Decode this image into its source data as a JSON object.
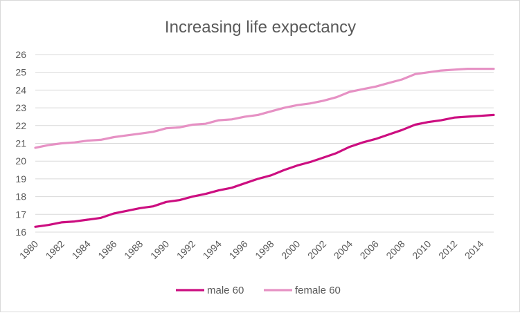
{
  "chart_data": {
    "type": "line",
    "title": "Increasing life expectancy",
    "xlabel": "",
    "ylabel": "",
    "x": [
      1980,
      1981,
      1982,
      1983,
      1984,
      1985,
      1986,
      1987,
      1988,
      1989,
      1990,
      1991,
      1992,
      1993,
      1994,
      1995,
      1996,
      1997,
      1998,
      1999,
      2000,
      2001,
      2002,
      2003,
      2004,
      2005,
      2006,
      2007,
      2008,
      2009,
      2010,
      2011,
      2012,
      2013,
      2014,
      2015
    ],
    "xticks": [
      "1980",
      "1982",
      "1984",
      "1986",
      "1988",
      "1990",
      "1992",
      "1994",
      "1996",
      "1998",
      "2000",
      "2002",
      "2004",
      "2006",
      "2008",
      "2010",
      "2012",
      "2014"
    ],
    "ylim": [
      16,
      26
    ],
    "yticks": [
      "16",
      "17",
      "18",
      "19",
      "20",
      "21",
      "22",
      "23",
      "24",
      "25",
      "26"
    ],
    "grid": true,
    "legend_position": "bottom",
    "series": [
      {
        "name": "male 60",
        "color": "#cc0e80",
        "values": [
          16.3,
          16.4,
          16.55,
          16.6,
          16.7,
          16.8,
          17.05,
          17.2,
          17.35,
          17.45,
          17.7,
          17.8,
          18.0,
          18.15,
          18.35,
          18.5,
          18.75,
          19.0,
          19.2,
          19.5,
          19.75,
          19.95,
          20.2,
          20.45,
          20.8,
          21.05,
          21.25,
          21.5,
          21.75,
          22.05,
          22.2,
          22.3,
          22.45,
          22.5,
          22.55,
          22.6
        ]
      },
      {
        "name": "female 60",
        "color": "#e691c4",
        "values": [
          20.75,
          20.9,
          21.0,
          21.05,
          21.15,
          21.2,
          21.35,
          21.45,
          21.55,
          21.65,
          21.85,
          21.9,
          22.05,
          22.1,
          22.3,
          22.35,
          22.5,
          22.6,
          22.8,
          23.0,
          23.15,
          23.25,
          23.4,
          23.6,
          23.9,
          24.05,
          24.2,
          24.4,
          24.6,
          24.9,
          25.0,
          25.1,
          25.15,
          25.2,
          25.2,
          25.2
        ]
      }
    ]
  }
}
